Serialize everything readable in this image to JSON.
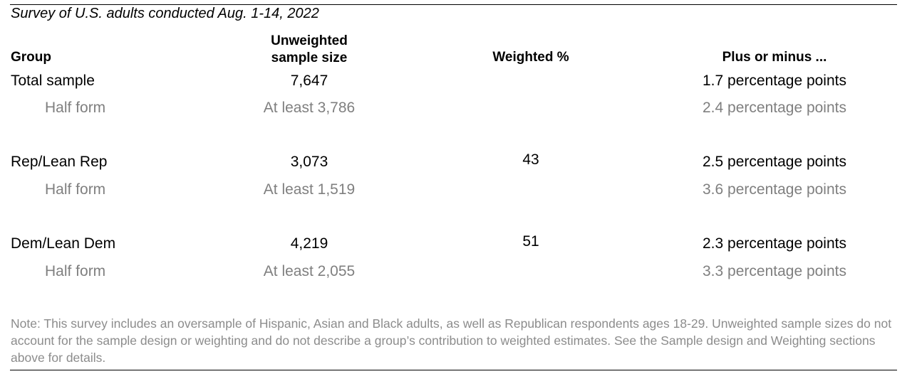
{
  "subtitle": "Survey of U.S. adults conducted Aug. 1-14, 2022",
  "headers": {
    "group": "Group",
    "sample_line1": "Unweighted",
    "sample_line2": "sample size",
    "weighted": "Weighted %",
    "margin": "Plus or minus ..."
  },
  "rows": [
    {
      "group": "Total sample",
      "sample": "7,647",
      "weighted": "",
      "margin": "1.7 percentage points"
    },
    {
      "group": "Half form",
      "sample": "At least 3,786",
      "weighted": "",
      "margin": "2.4 percentage points"
    },
    {
      "group": "Rep/Lean Rep",
      "sample": "3,073",
      "weighted": "43",
      "margin": "2.5 percentage points"
    },
    {
      "group": "Half form",
      "sample": "At least 1,519",
      "weighted": "",
      "margin": "3.6 percentage points"
    },
    {
      "group": "Dem/Lean Dem",
      "sample": "4,219",
      "weighted": "51",
      "margin": "2.3 percentage points"
    },
    {
      "group": "Half form",
      "sample": "At least 2,055",
      "weighted": "",
      "margin": "3.3 percentage points"
    }
  ],
  "note": "Note: This survey includes an oversample of Hispanic, Asian and Black adults, as well as Republican respondents ages 18-29. Unweighted sample sizes do not account for the sample design or weighting and do not describe a group’s contribution to weighted estimates. See the Sample design and Weighting sections above for details.",
  "colors": {
    "text": "#000000",
    "muted": "#7f7f7f",
    "note": "#8c8c8c",
    "rule": "#000000"
  }
}
